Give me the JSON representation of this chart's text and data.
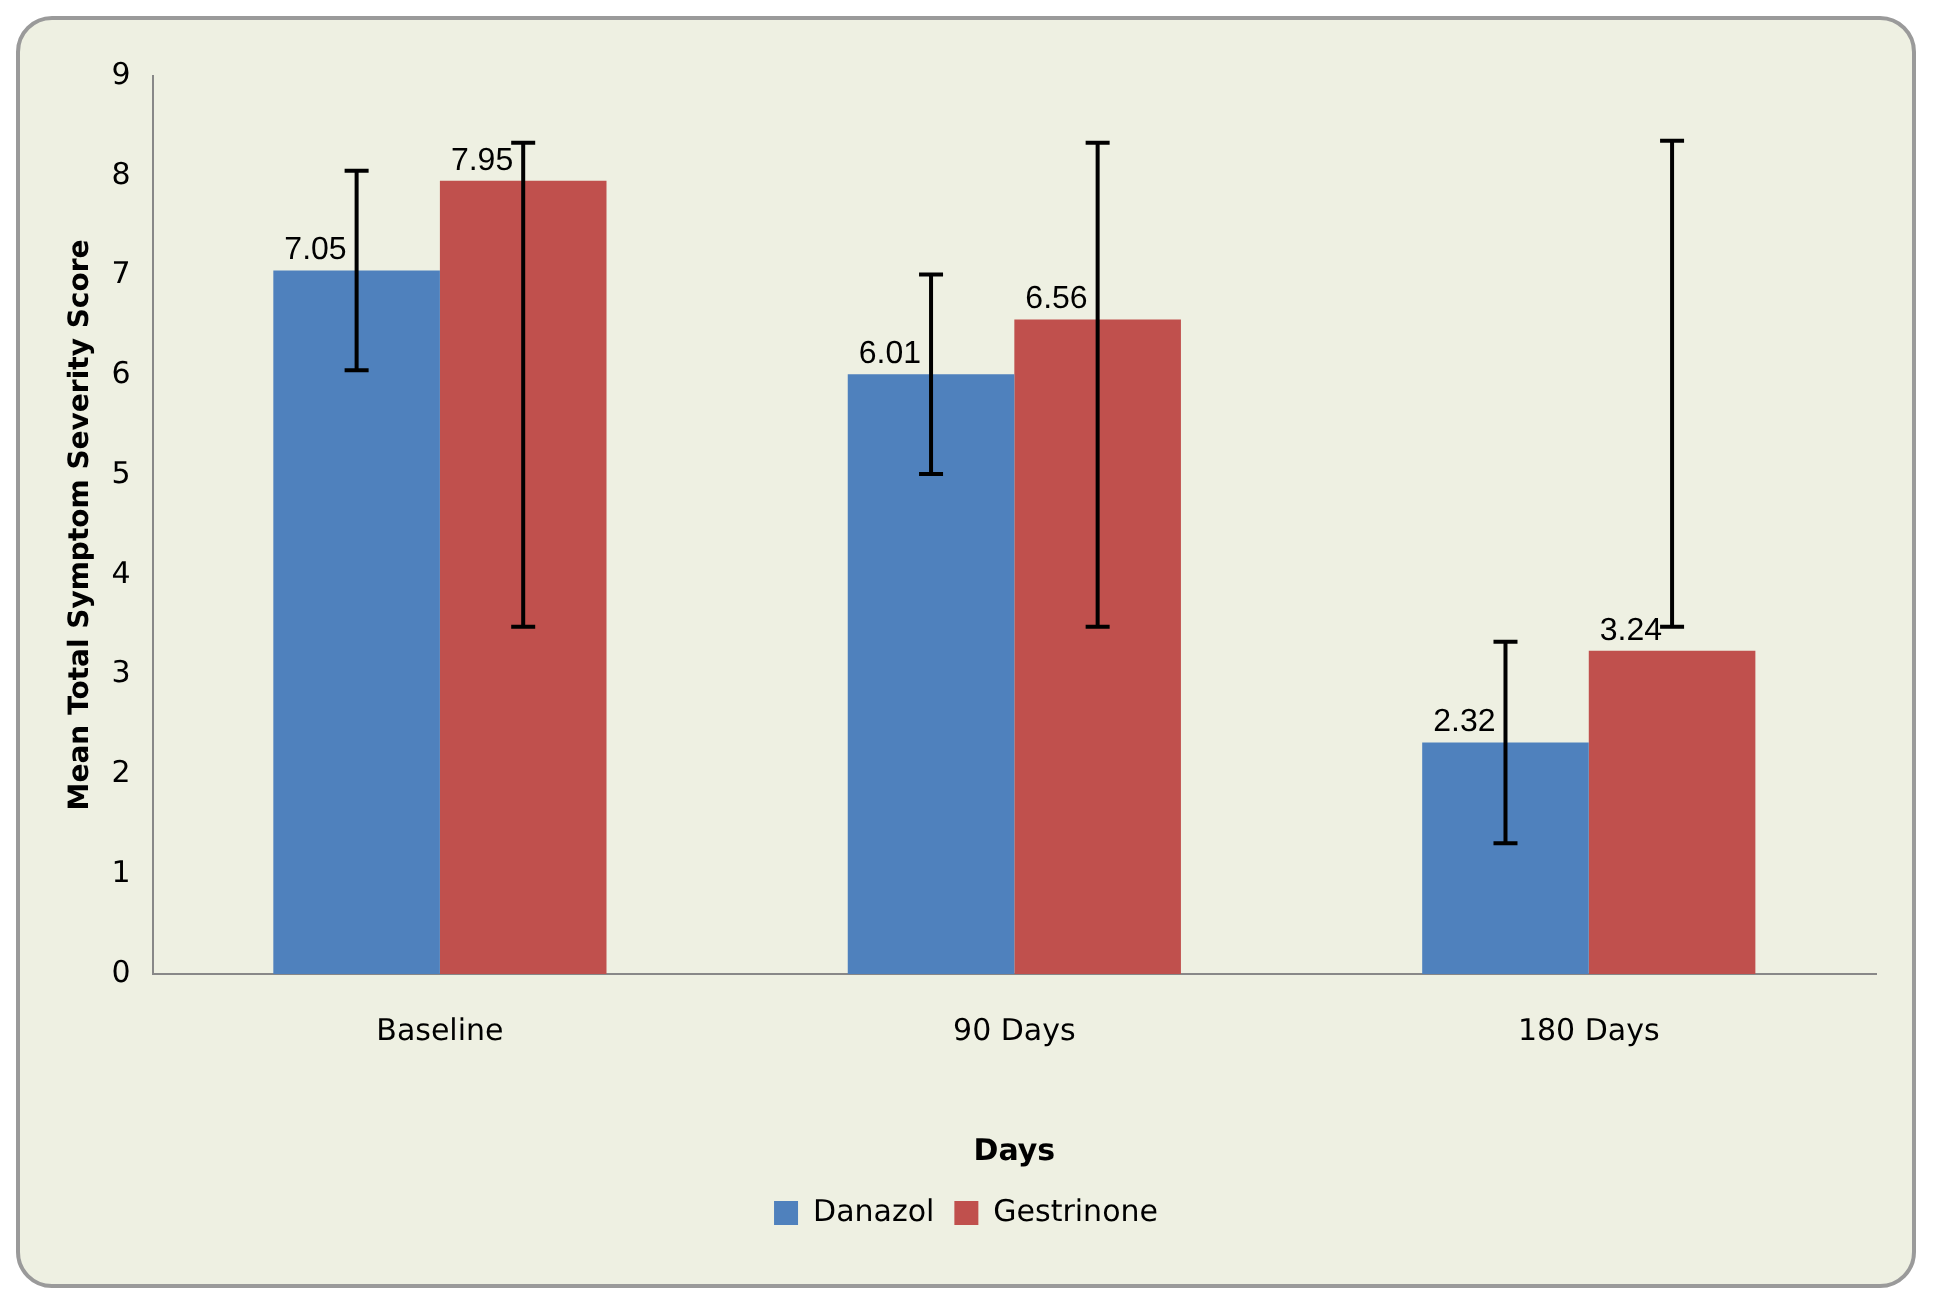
{
  "chart_data": {
    "type": "bar",
    "xlabel": "Days",
    "ylabel": "Mean Total Symptom Severity Score",
    "categories": [
      "Baseline",
      "90 Days",
      "180 Days"
    ],
    "series": [
      {
        "name": "Danazol",
        "color": "#4f81bd",
        "values": [
          7.05,
          6.01,
          2.32
        ],
        "errors": [
          [
            6.05,
            8.05
          ],
          [
            5.01,
            7.01
          ],
          [
            1.31,
            3.33
          ]
        ]
      },
      {
        "name": "Gestrinone",
        "color": "#c0504d",
        "values": [
          7.95,
          6.56,
          3.24
        ],
        "errors": [
          [
            3.48,
            8.33
          ],
          [
            3.48,
            8.33
          ],
          [
            3.48,
            8.35
          ]
        ]
      }
    ],
    "ylim": [
      0,
      9
    ],
    "yticks": [
      0,
      1,
      2,
      3,
      4,
      5,
      6,
      7,
      8,
      9
    ],
    "grid": false,
    "legend": "bottom",
    "data_labels": true
  }
}
